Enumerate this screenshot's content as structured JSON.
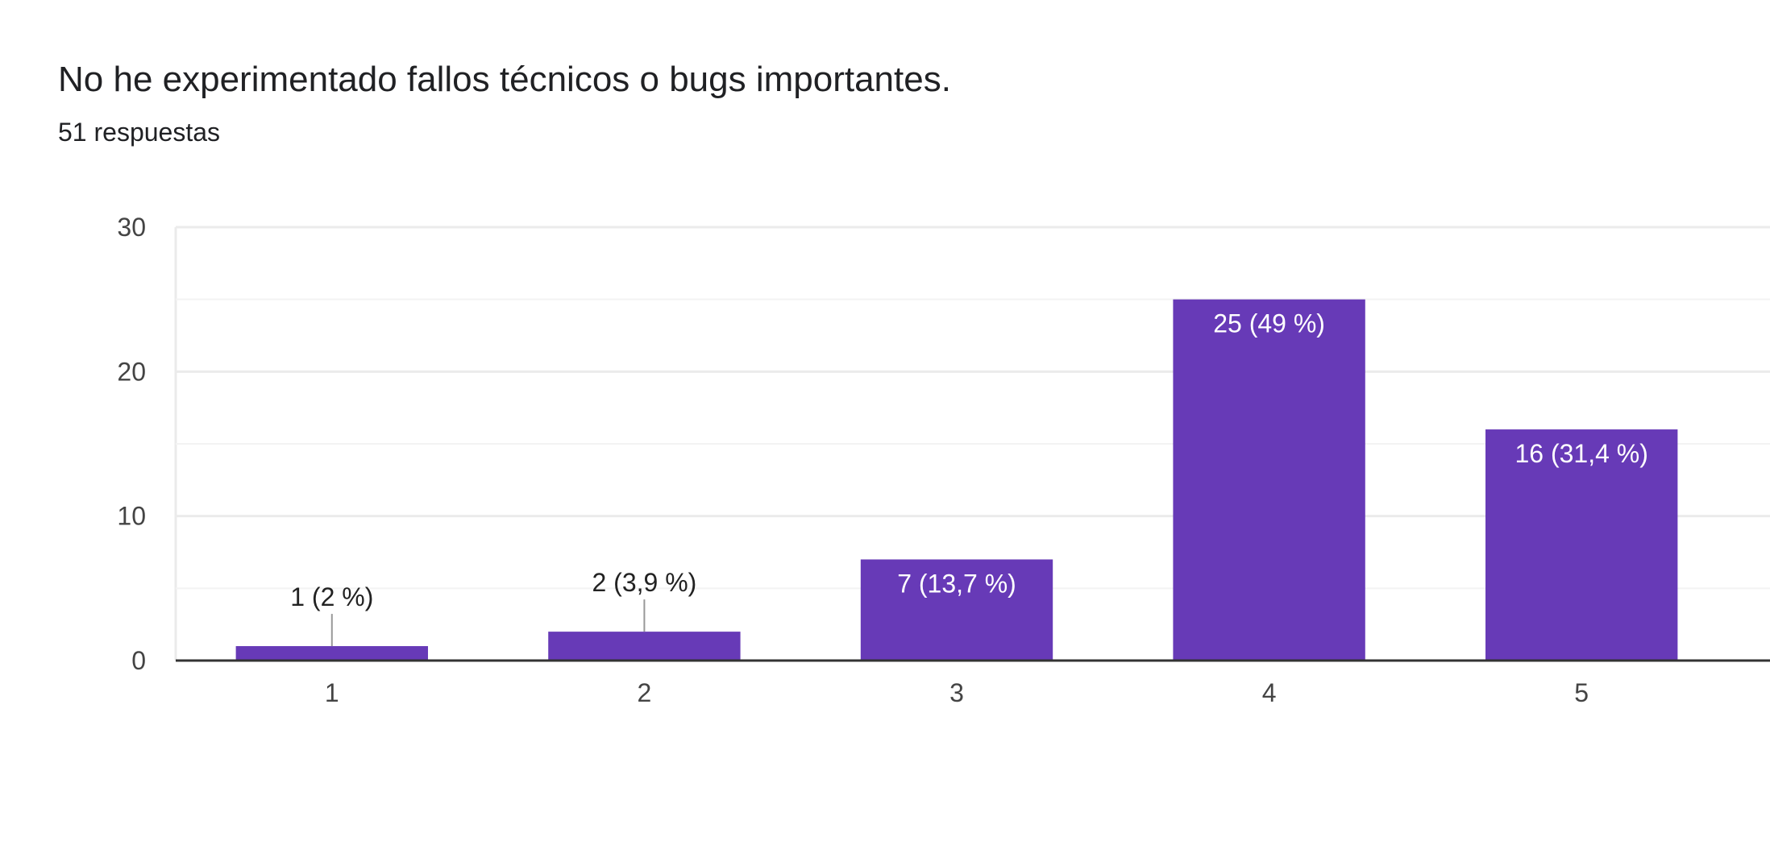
{
  "title": "No he experimentado fallos técnicos o bugs importantes.",
  "subtitle": "51 respuestas",
  "colors": {
    "bar": "#673ab7",
    "grid": "#ebebeb",
    "baseline": "#333333",
    "leader": "#999999"
  },
  "chart_data": {
    "type": "bar",
    "categories": [
      "1",
      "2",
      "3",
      "4",
      "5"
    ],
    "values": [
      1,
      2,
      7,
      25,
      16
    ],
    "data_labels": [
      "1 (2 %)",
      "2 (3,9 %)",
      "7 (13,7 %)",
      "25 (49 %)",
      "16 (31,4 %)"
    ],
    "ylim": [
      0,
      30
    ],
    "yticks": [
      0,
      10,
      20,
      30
    ],
    "minor_gridlines": [
      5,
      15,
      25
    ],
    "grid": true,
    "legend": "none"
  }
}
